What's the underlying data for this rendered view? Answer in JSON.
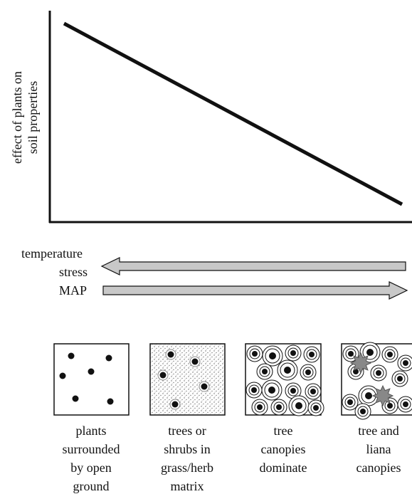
{
  "axis": {
    "ylabel_lines": [
      "effect of plants on",
      "soil properties"
    ]
  },
  "arrows": {
    "temperature_stress_lines": [
      "temperature",
      "stress"
    ],
    "map": "MAP"
  },
  "panels": [
    {
      "caption_lines": [
        "plants",
        "surrounded",
        "by open",
        "ground"
      ]
    },
    {
      "caption_lines": [
        "trees or",
        "shrubs in",
        "grass/herb",
        "matrix"
      ]
    },
    {
      "caption_lines": [
        "tree",
        "canopies",
        "dominate"
      ]
    },
    {
      "caption_lines": [
        "tree and",
        "liana",
        "canopies"
      ]
    }
  ]
}
